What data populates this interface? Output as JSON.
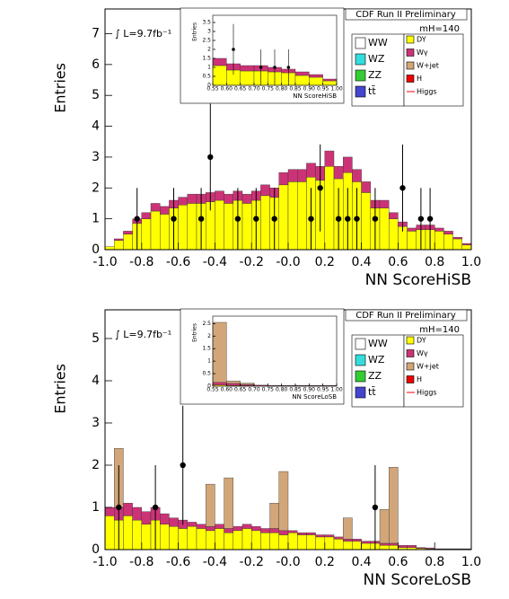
{
  "chart_data": [
    {
      "type": "histogram",
      "header": "CDF Run II Preliminary",
      "luminosity": "∫ L=9.7fb⁻¹",
      "mass": "mH=140",
      "xlabel": "NN ScoreHiSB",
      "ylabel": "Entries",
      "bins": [
        -1.0,
        -0.95,
        -0.9,
        -0.85,
        -0.8,
        -0.75,
        -0.7,
        -0.65,
        -0.6,
        -0.55,
        -0.5,
        -0.45,
        -0.4,
        -0.35,
        -0.3,
        -0.25,
        -0.2,
        -0.15,
        -0.1,
        -0.05,
        0,
        0.05,
        0.1,
        0.15,
        0.2,
        0.25,
        0.3,
        0.35,
        0.4,
        0.45,
        0.5,
        0.55,
        0.6,
        0.65,
        0.7,
        0.75,
        0.8,
        0.85,
        0.9,
        0.95,
        1.0
      ],
      "series": [
        {
          "name": "DY",
          "color": "#ffff00",
          "values": [
            0.1,
            0.3,
            0.5,
            0.85,
            1.0,
            1.25,
            1.15,
            1.35,
            1.45,
            1.5,
            1.5,
            1.55,
            1.6,
            1.5,
            1.6,
            1.5,
            1.6,
            1.75,
            1.7,
            2.1,
            2.2,
            2.2,
            2.35,
            2.25,
            2.7,
            2.3,
            2.5,
            2.2,
            1.85,
            1.35,
            1.35,
            1.0,
            0.75,
            0.6,
            0.65,
            0.65,
            0.6,
            0.5,
            0.35,
            0.15
          ]
        },
        {
          "name": "Wγ",
          "color": "#cc3377",
          "values": [
            0,
            0.05,
            0.1,
            0.15,
            0.2,
            0.25,
            0.25,
            0.25,
            0.25,
            0.3,
            0.3,
            0.3,
            0.3,
            0.3,
            0.3,
            0.3,
            0.3,
            0.35,
            0.3,
            0.4,
            0.4,
            0.4,
            0.45,
            0.45,
            0.5,
            0.4,
            0.5,
            0.4,
            0.35,
            0.25,
            0.25,
            0.2,
            0.15,
            0.1,
            0.15,
            0.15,
            0.1,
            0.1,
            0.05,
            0.05
          ]
        }
      ],
      "data_points": {
        "x": [
          -0.825,
          -0.625,
          -0.475,
          -0.425,
          -0.275,
          -0.175,
          -0.075,
          0.125,
          0.175,
          0.275,
          0.325,
          0.375,
          0.475,
          0.625,
          0.725,
          0.775
        ],
        "values": [
          1,
          1,
          1,
          3,
          1,
          1,
          1,
          1,
          2,
          1,
          1,
          1,
          1,
          2,
          1,
          1
        ],
        "errors": [
          1,
          1,
          1,
          1.73,
          1,
          1,
          1,
          1,
          1.41,
          1,
          1,
          1,
          1,
          1.41,
          1,
          1
        ]
      },
      "xlim": [
        -1.0,
        1.0
      ],
      "xticks": [
        {
          "value": -1.0,
          "label": "-1.0"
        },
        -0.8,
        -0.6,
        -0.4,
        -0.2,
        {
          "value": 0,
          "label": "-0.0"
        },
        0.2,
        0.4,
        0.6,
        0.8,
        {
          "value": 1.0,
          "label": "1.0"
        }
      ],
      "ylim": [
        0,
        7.8
      ],
      "yticks": [
        0,
        1,
        2,
        3,
        4,
        5,
        6,
        7
      ],
      "legend": [
        {
          "name": "WW",
          "color": "#ffffff"
        },
        {
          "name": "WZ",
          "color": "#33dddd"
        },
        {
          "name": "ZZ",
          "color": "#33cc33"
        },
        {
          "name": "tt̄",
          "color": "#4444cc"
        },
        {
          "name": "DY",
          "color": "#ffff00"
        },
        {
          "name": "Wγ",
          "color": "#cc3377"
        },
        {
          "name": "W+jet",
          "color": "#d2a679"
        },
        {
          "name": "H",
          "color": "#ee0000"
        },
        {
          "name": "Higgs",
          "color": "#ee0000",
          "line": true
        }
      ],
      "inset": {
        "xlabel": "NN ScoreHiSB",
        "ylabel": "Entries",
        "bins": [
          0.55,
          0.6,
          0.65,
          0.7,
          0.75,
          0.8,
          0.85,
          0.9,
          0.95,
          1.0
        ],
        "series": [
          {
            "name": "DY",
            "color": "#ffff00",
            "values": [
              1.1,
              0.85,
              0.8,
              0.8,
              0.75,
              0.7,
              0.55,
              0.45,
              0.25
            ]
          },
          {
            "name": "Wγ",
            "color": "#cc3377",
            "values": [
              0.4,
              0.35,
              0.3,
              0.3,
              0.25,
              0.2,
              0.2,
              0.15,
              0.1
            ]
          }
        ],
        "data_points": {
          "x": [
            0.625,
            0.725,
            0.775,
            0.825
          ],
          "values": [
            2,
            1,
            1,
            1
          ],
          "errors": [
            1.41,
            1,
            1,
            1
          ]
        },
        "xlim": [
          0.55,
          1.0
        ],
        "xticks": [
          0.55,
          {
            "value": 0.6,
            "label": "0.60"
          },
          0.65,
          {
            "value": 0.7,
            "label": "0.70"
          },
          0.75,
          {
            "value": 0.8,
            "label": "0.80"
          },
          0.85,
          {
            "value": 0.9,
            "label": "0.90"
          },
          0.95,
          {
            "value": 1.0,
            "label": "1.00"
          }
        ],
        "ylim": [
          0,
          3.9
        ],
        "yticks": [
          0,
          0.5,
          1,
          1.5,
          2,
          2.5,
          3,
          3.5
        ]
      }
    },
    {
      "type": "histogram",
      "header": "CDF Run II Preliminary",
      "luminosity": "∫ L=9.7fb⁻¹",
      "mass": "mH=140",
      "xlabel": "NN ScoreLoSB",
      "ylabel": "Entries",
      "bins": [
        -1.0,
        -0.95,
        -0.9,
        -0.85,
        -0.8,
        -0.75,
        -0.7,
        -0.65,
        -0.6,
        -0.55,
        -0.5,
        -0.45,
        -0.4,
        -0.35,
        -0.3,
        -0.25,
        -0.2,
        -0.15,
        -0.1,
        -0.05,
        0,
        0.05,
        0.1,
        0.15,
        0.2,
        0.25,
        0.3,
        0.35,
        0.4,
        0.45,
        0.5,
        0.55,
        0.6,
        0.65,
        0.7,
        0.75,
        0.8,
        0.85,
        0.9,
        0.95,
        1.0
      ],
      "series": [
        {
          "name": "DY",
          "color": "#ffff00",
          "values": [
            0.8,
            0.7,
            0.8,
            0.7,
            0.6,
            0.7,
            0.6,
            0.55,
            0.5,
            0.55,
            0.5,
            0.45,
            0.5,
            0.4,
            0.45,
            0.5,
            0.45,
            0.4,
            0.4,
            0.35,
            0.4,
            0.35,
            0.35,
            0.3,
            0.3,
            0.25,
            0.2,
            0.2,
            0.15,
            0.15,
            0.1,
            0.1,
            0.05,
            0.05,
            0.03,
            0.02,
            0.01,
            0.01,
            0.01,
            0.01
          ]
        },
        {
          "name": "Wγ",
          "color": "#cc3377",
          "values": [
            0.2,
            0.3,
            0.3,
            0.3,
            0.3,
            0.3,
            0.25,
            0.2,
            0.2,
            0.1,
            0.1,
            0.1,
            0.1,
            0.1,
            0.1,
            0.1,
            0.1,
            0.1,
            0.1,
            0.1,
            0.05,
            0.05,
            0.05,
            0.05,
            0.05,
            0.05,
            0.05,
            0.05,
            0.05,
            0.05,
            0.05,
            0.05,
            0.05,
            0.05,
            0.02,
            0.02,
            0.01,
            0.01,
            0.01,
            0.01
          ]
        },
        {
          "name": "W+jet",
          "color": "#d2a679",
          "values": [
            0,
            1.4,
            0,
            0,
            0,
            0,
            0,
            0,
            0,
            0,
            0,
            1.0,
            0,
            1.2,
            0,
            0,
            0,
            0,
            0.6,
            1.4,
            0,
            0,
            0,
            0,
            0,
            0,
            0.5,
            0,
            0,
            0,
            0.8,
            1.8,
            0,
            0,
            0,
            0,
            0,
            0,
            0,
            0
          ]
        }
      ],
      "data_points": {
        "x": [
          -0.925,
          -0.725,
          -0.575,
          0.475
        ],
        "values": [
          1,
          1,
          2,
          1
        ],
        "errors": [
          1,
          1,
          1.41,
          1
        ]
      },
      "xlim": [
        -1.0,
        1.0
      ],
      "xticks": [
        {
          "value": -1.0,
          "label": "-1.0"
        },
        -0.8,
        -0.6,
        -0.4,
        -0.2,
        {
          "value": 0,
          "label": "-0.0"
        },
        0.2,
        0.4,
        0.6,
        0.8,
        {
          "value": 1.0,
          "label": "1.0"
        }
      ],
      "ylim": [
        0,
        5.68
      ],
      "yticks": [
        0,
        1,
        2,
        3,
        4,
        5
      ],
      "legend": [
        {
          "name": "WW",
          "color": "#ffffff"
        },
        {
          "name": "WZ",
          "color": "#33dddd"
        },
        {
          "name": "ZZ",
          "color": "#33cc33"
        },
        {
          "name": "tt̄",
          "color": "#4444cc"
        },
        {
          "name": "DY",
          "color": "#ffff00"
        },
        {
          "name": "Wγ",
          "color": "#cc3377"
        },
        {
          "name": "W+jet",
          "color": "#d2a679"
        },
        {
          "name": "H",
          "color": "#ee0000"
        },
        {
          "name": "Higgs",
          "color": "#ee0000",
          "line": true
        }
      ],
      "inset": {
        "xlabel": "NN ScoreLoSB",
        "ylabel": "Entries",
        "bins": [
          0.55,
          0.6,
          0.65,
          0.7,
          0.75,
          0.8,
          0.85,
          0.9,
          0.95,
          1.0
        ],
        "series": [
          {
            "name": "DY",
            "color": "#ffff00",
            "values": [
              0.05,
              0.03,
              0.02,
              0.01,
              0.01,
              0.01,
              0.01,
              0.01,
              0.01
            ]
          },
          {
            "name": "Wγ",
            "color": "#cc3377",
            "values": [
              0.1,
              0.08,
              0.05,
              0.03,
              0.02,
              0.02,
              0.02,
              0.02,
              0.02
            ]
          },
          {
            "name": "W+jet",
            "color": "#d2a679",
            "values": [
              2.4,
              0.1,
              0.05,
              0,
              0,
              0,
              0,
              0,
              0
            ]
          }
        ],
        "xlim": [
          0.55,
          1.0
        ],
        "xticks": [
          0.55,
          {
            "value": 0.6,
            "label": "0.60"
          },
          0.65,
          {
            "value": 0.7,
            "label": "0.70"
          },
          0.75,
          {
            "value": 0.8,
            "label": "0.80"
          },
          0.85,
          {
            "value": 0.9,
            "label": "0.90"
          },
          0.95,
          {
            "value": 1.0,
            "label": "1.00"
          }
        ],
        "ylim": [
          0,
          2.8
        ],
        "yticks": [
          0,
          0.5,
          1,
          1.5,
          2,
          2.5
        ]
      }
    }
  ]
}
